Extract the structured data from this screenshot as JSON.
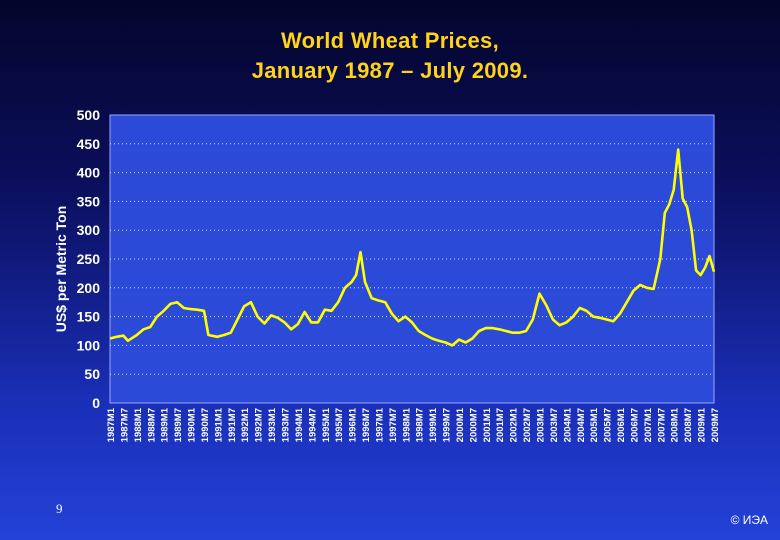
{
  "slide": {
    "title_line1": "World Wheat Prices,",
    "title_line2": "January 1987 – July 2009.",
    "page_number": "9",
    "copyright": "© ИЭА"
  },
  "colors": {
    "line": "#ffff00",
    "title": "#ffd31a",
    "plot_area": "#2b4ad8",
    "grid": "#d8dcff",
    "axis_text": "#ffffff"
  },
  "chart_data": {
    "type": "line",
    "title": "World Wheat Prices, January 1987 – July 2009.",
    "xlabel": "",
    "ylabel": "US$ per Metric Ton",
    "ylim": [
      0,
      500
    ],
    "yticks": [
      0,
      50,
      100,
      150,
      200,
      250,
      300,
      350,
      400,
      450,
      500
    ],
    "grid": "horizontal dotted",
    "legend": "none",
    "x_tick_labels": [
      "1987M1",
      "1987M7",
      "1988M1",
      "1988M7",
      "1989M1",
      "1989M7",
      "1990M1",
      "1990M7",
      "1991M1",
      "1991M7",
      "1992M1",
      "1992M7",
      "1993M1",
      "1993M7",
      "1994M1",
      "1994M7",
      "1995M1",
      "1995M7",
      "1996M1",
      "1996M7",
      "1997M1",
      "1997M7",
      "1998M1",
      "1998M7",
      "1999M1",
      "1999M7",
      "2000M1",
      "2000M7",
      "2001M1",
      "2001M7",
      "2002M1",
      "2002M7",
      "2003M1",
      "2003M7",
      "2004M1",
      "2004M7",
      "2005M1",
      "2005M7",
      "2006M1",
      "2006M7",
      "2007M1",
      "2007M7",
      "2008M1",
      "2008M7",
      "2009M1",
      "2009M7"
    ],
    "series": [
      {
        "x": [
          "1987-01",
          "1987-04",
          "1987-07",
          "1987-09",
          "1988-01",
          "1988-04",
          "1988-07",
          "1988-10",
          "1989-01",
          "1989-04",
          "1989-07",
          "1989-10",
          "1990-01",
          "1990-04",
          "1990-07",
          "1990-09",
          "1991-01",
          "1991-04",
          "1991-07",
          "1991-10",
          "1992-01",
          "1992-04",
          "1992-07",
          "1992-10",
          "1993-01",
          "1993-04",
          "1993-07",
          "1993-10",
          "1994-01",
          "1994-04",
          "1994-07",
          "1994-10",
          "1995-01",
          "1995-04",
          "1995-07",
          "1995-10",
          "1996-01",
          "1996-03",
          "1996-05",
          "1996-07",
          "1996-10",
          "1997-01",
          "1997-04",
          "1997-07",
          "1997-10",
          "1998-01",
          "1998-04",
          "1998-07",
          "1998-10",
          "1999-01",
          "1999-04",
          "1999-07",
          "1999-10",
          "2000-01",
          "2000-04",
          "2000-07",
          "2000-10",
          "2001-01",
          "2001-04",
          "2001-07",
          "2001-10",
          "2002-01",
          "2002-04",
          "2002-07",
          "2002-10",
          "2003-01",
          "2003-04",
          "2003-07",
          "2003-10",
          "2004-01",
          "2004-04",
          "2004-07",
          "2004-10",
          "2005-01",
          "2005-04",
          "2005-07",
          "2005-10",
          "2006-01",
          "2006-04",
          "2006-07",
          "2006-10",
          "2007-01",
          "2007-04",
          "2007-07",
          "2007-09",
          "2007-11",
          "2008-01",
          "2008-03",
          "2008-05",
          "2008-07",
          "2008-09",
          "2008-11",
          "2009-01",
          "2009-03",
          "2009-05",
          "2009-07"
        ],
        "values": [
          112,
          115,
          117,
          108,
          118,
          128,
          132,
          150,
          160,
          172,
          175,
          165,
          163,
          162,
          160,
          118,
          115,
          118,
          122,
          145,
          168,
          175,
          150,
          138,
          152,
          148,
          140,
          128,
          137,
          158,
          140,
          140,
          162,
          160,
          175,
          200,
          210,
          222,
          262,
          210,
          182,
          178,
          175,
          155,
          142,
          150,
          140,
          125,
          118,
          112,
          108,
          105,
          100,
          110,
          105,
          112,
          125,
          130,
          130,
          128,
          125,
          122,
          122,
          125,
          145,
          190,
          170,
          145,
          135,
          140,
          150,
          165,
          160,
          150,
          148,
          145,
          142,
          155,
          175,
          195,
          205,
          200,
          198,
          250,
          330,
          345,
          370,
          440,
          355,
          340,
          300,
          230,
          222,
          235,
          255,
          228
        ]
      }
    ]
  }
}
